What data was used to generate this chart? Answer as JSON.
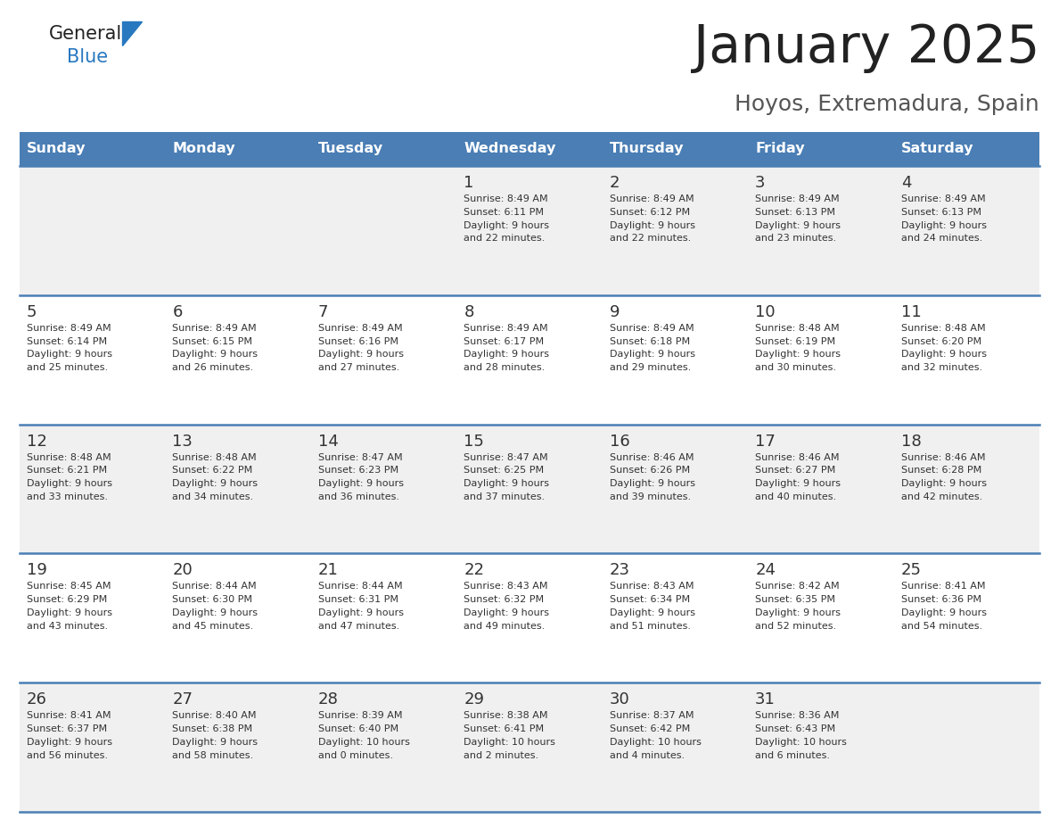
{
  "title": "January 2025",
  "subtitle": "Hoyos, Extremadura, Spain",
  "header_bg": "#4a7eb5",
  "header_text_color": "#ffffff",
  "days_of_week": [
    "Sunday",
    "Monday",
    "Tuesday",
    "Wednesday",
    "Thursday",
    "Friday",
    "Saturday"
  ],
  "row_bg_odd": "#f0f0f0",
  "row_bg_even": "#ffffff",
  "cell_text_color": "#333333",
  "divider_color": "#4a7eb5",
  "title_color": "#222222",
  "subtitle_color": "#555555",
  "logo_general_color": "#222222",
  "logo_blue_color": "#2878c0",
  "calendar": [
    [
      {
        "day": "",
        "text": ""
      },
      {
        "day": "",
        "text": ""
      },
      {
        "day": "",
        "text": ""
      },
      {
        "day": "1",
        "text": "Sunrise: 8:49 AM\nSunset: 6:11 PM\nDaylight: 9 hours\nand 22 minutes."
      },
      {
        "day": "2",
        "text": "Sunrise: 8:49 AM\nSunset: 6:12 PM\nDaylight: 9 hours\nand 22 minutes."
      },
      {
        "day": "3",
        "text": "Sunrise: 8:49 AM\nSunset: 6:13 PM\nDaylight: 9 hours\nand 23 minutes."
      },
      {
        "day": "4",
        "text": "Sunrise: 8:49 AM\nSunset: 6:13 PM\nDaylight: 9 hours\nand 24 minutes."
      }
    ],
    [
      {
        "day": "5",
        "text": "Sunrise: 8:49 AM\nSunset: 6:14 PM\nDaylight: 9 hours\nand 25 minutes."
      },
      {
        "day": "6",
        "text": "Sunrise: 8:49 AM\nSunset: 6:15 PM\nDaylight: 9 hours\nand 26 minutes."
      },
      {
        "day": "7",
        "text": "Sunrise: 8:49 AM\nSunset: 6:16 PM\nDaylight: 9 hours\nand 27 minutes."
      },
      {
        "day": "8",
        "text": "Sunrise: 8:49 AM\nSunset: 6:17 PM\nDaylight: 9 hours\nand 28 minutes."
      },
      {
        "day": "9",
        "text": "Sunrise: 8:49 AM\nSunset: 6:18 PM\nDaylight: 9 hours\nand 29 minutes."
      },
      {
        "day": "10",
        "text": "Sunrise: 8:48 AM\nSunset: 6:19 PM\nDaylight: 9 hours\nand 30 minutes."
      },
      {
        "day": "11",
        "text": "Sunrise: 8:48 AM\nSunset: 6:20 PM\nDaylight: 9 hours\nand 32 minutes."
      }
    ],
    [
      {
        "day": "12",
        "text": "Sunrise: 8:48 AM\nSunset: 6:21 PM\nDaylight: 9 hours\nand 33 minutes."
      },
      {
        "day": "13",
        "text": "Sunrise: 8:48 AM\nSunset: 6:22 PM\nDaylight: 9 hours\nand 34 minutes."
      },
      {
        "day": "14",
        "text": "Sunrise: 8:47 AM\nSunset: 6:23 PM\nDaylight: 9 hours\nand 36 minutes."
      },
      {
        "day": "15",
        "text": "Sunrise: 8:47 AM\nSunset: 6:25 PM\nDaylight: 9 hours\nand 37 minutes."
      },
      {
        "day": "16",
        "text": "Sunrise: 8:46 AM\nSunset: 6:26 PM\nDaylight: 9 hours\nand 39 minutes."
      },
      {
        "day": "17",
        "text": "Sunrise: 8:46 AM\nSunset: 6:27 PM\nDaylight: 9 hours\nand 40 minutes."
      },
      {
        "day": "18",
        "text": "Sunrise: 8:46 AM\nSunset: 6:28 PM\nDaylight: 9 hours\nand 42 minutes."
      }
    ],
    [
      {
        "day": "19",
        "text": "Sunrise: 8:45 AM\nSunset: 6:29 PM\nDaylight: 9 hours\nand 43 minutes."
      },
      {
        "day": "20",
        "text": "Sunrise: 8:44 AM\nSunset: 6:30 PM\nDaylight: 9 hours\nand 45 minutes."
      },
      {
        "day": "21",
        "text": "Sunrise: 8:44 AM\nSunset: 6:31 PM\nDaylight: 9 hours\nand 47 minutes."
      },
      {
        "day": "22",
        "text": "Sunrise: 8:43 AM\nSunset: 6:32 PM\nDaylight: 9 hours\nand 49 minutes."
      },
      {
        "day": "23",
        "text": "Sunrise: 8:43 AM\nSunset: 6:34 PM\nDaylight: 9 hours\nand 51 minutes."
      },
      {
        "day": "24",
        "text": "Sunrise: 8:42 AM\nSunset: 6:35 PM\nDaylight: 9 hours\nand 52 minutes."
      },
      {
        "day": "25",
        "text": "Sunrise: 8:41 AM\nSunset: 6:36 PM\nDaylight: 9 hours\nand 54 minutes."
      }
    ],
    [
      {
        "day": "26",
        "text": "Sunrise: 8:41 AM\nSunset: 6:37 PM\nDaylight: 9 hours\nand 56 minutes."
      },
      {
        "day": "27",
        "text": "Sunrise: 8:40 AM\nSunset: 6:38 PM\nDaylight: 9 hours\nand 58 minutes."
      },
      {
        "day": "28",
        "text": "Sunrise: 8:39 AM\nSunset: 6:40 PM\nDaylight: 10 hours\nand 0 minutes."
      },
      {
        "day": "29",
        "text": "Sunrise: 8:38 AM\nSunset: 6:41 PM\nDaylight: 10 hours\nand 2 minutes."
      },
      {
        "day": "30",
        "text": "Sunrise: 8:37 AM\nSunset: 6:42 PM\nDaylight: 10 hours\nand 4 minutes."
      },
      {
        "day": "31",
        "text": "Sunrise: 8:36 AM\nSunset: 6:43 PM\nDaylight: 10 hours\nand 6 minutes."
      },
      {
        "day": "",
        "text": ""
      }
    ]
  ]
}
